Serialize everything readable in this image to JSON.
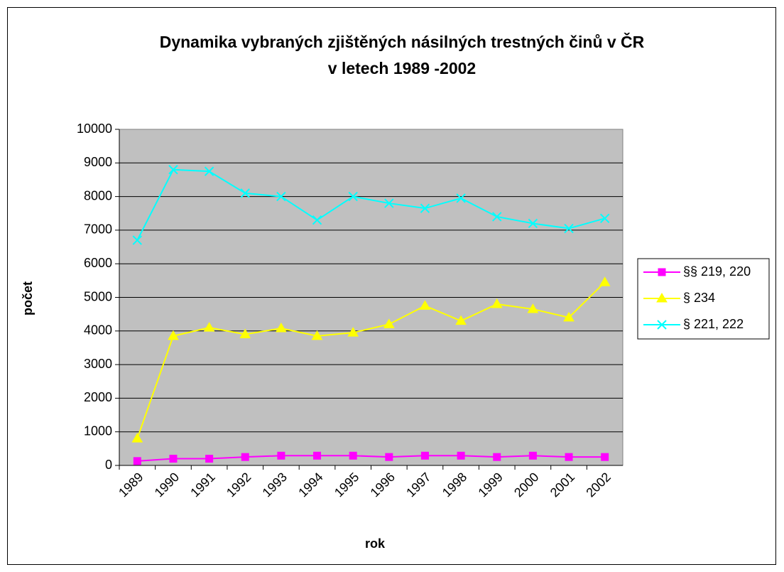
{
  "chart_data": {
    "type": "line",
    "title": [
      "Dynamika vybraných zjištěných násilných trestných činů v ČR",
      "v letech 1989 -2002"
    ],
    "xlabel": "rok",
    "ylabel": "počet",
    "categories": [
      "1989",
      "1990",
      "1991",
      "1992",
      "1993",
      "1994",
      "1995",
      "1996",
      "1997",
      "1998",
      "1999",
      "2000",
      "2001",
      "2002"
    ],
    "series": [
      {
        "name": "§§ 219, 220",
        "color": "#ff00ff",
        "marker": "square",
        "values": [
          130,
          200,
          200,
          250,
          290,
          290,
          290,
          250,
          290,
          290,
          250,
          290,
          250,
          250
        ]
      },
      {
        "name": "§ 234",
        "color": "#ffff00",
        "marker": "triangle",
        "values": [
          800,
          3850,
          4100,
          3900,
          4080,
          3850,
          3950,
          4200,
          4750,
          4300,
          4800,
          4650,
          4400,
          5450
        ]
      },
      {
        "name": "§ 221, 222",
        "color": "#00ffff",
        "marker": "x",
        "values": [
          6700,
          8800,
          8750,
          8100,
          8000,
          7300,
          8000,
          7800,
          7650,
          7950,
          7400,
          7200,
          7050,
          7350
        ]
      }
    ],
    "ylim": [
      0,
      10000
    ],
    "yticks": [
      0,
      1000,
      2000,
      3000,
      4000,
      5000,
      6000,
      7000,
      8000,
      9000,
      10000
    ],
    "grid": true,
    "legend": "right",
    "plot_background": "#c0c0c0"
  }
}
